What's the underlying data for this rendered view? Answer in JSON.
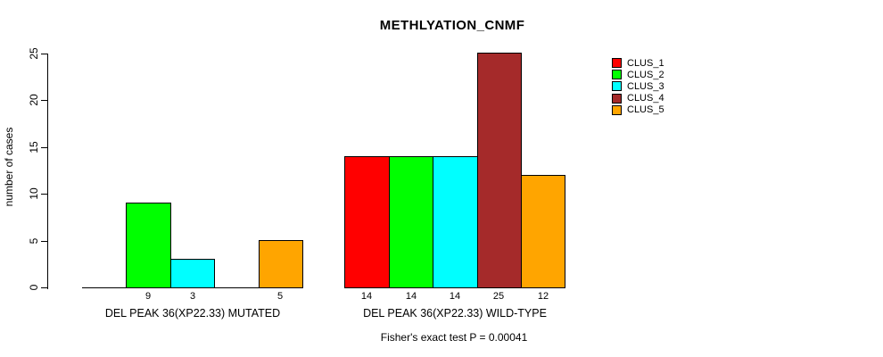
{
  "chart_data": {
    "type": "bar",
    "title": "METHLYATION_CNMF",
    "ylabel": "number of cases",
    "xlabel": "",
    "ylim": [
      0,
      25
    ],
    "yticks": [
      0,
      5,
      10,
      15,
      20,
      25
    ],
    "categories": [
      "DEL PEAK 36(XP22.33) MUTATED",
      "DEL PEAK 36(XP22.33) WILD-TYPE"
    ],
    "series": [
      {
        "name": "CLUS_1",
        "color": "#FF0000",
        "values": [
          0,
          14
        ]
      },
      {
        "name": "CLUS_2",
        "color": "#00FF00",
        "values": [
          9,
          14
        ]
      },
      {
        "name": "CLUS_3",
        "color": "#00FFFF",
        "values": [
          3,
          14
        ]
      },
      {
        "name": "CLUS_4",
        "color": "#A52A2A",
        "values": [
          0,
          25
        ]
      },
      {
        "name": "CLUS_5",
        "color": "#FFA500",
        "values": [
          5,
          12
        ]
      }
    ],
    "bar_value_labels": [
      [
        "",
        "9",
        "3",
        "",
        "5"
      ],
      [
        "14",
        "14",
        "14",
        "25",
        "12"
      ]
    ],
    "annotation": "Fisher's exact test P = 0.00041",
    "legend_position": "top-right",
    "grid": false,
    "bar_border_color": "#000000",
    "axis_color": "#000000",
    "background": "#FFFFFF"
  }
}
